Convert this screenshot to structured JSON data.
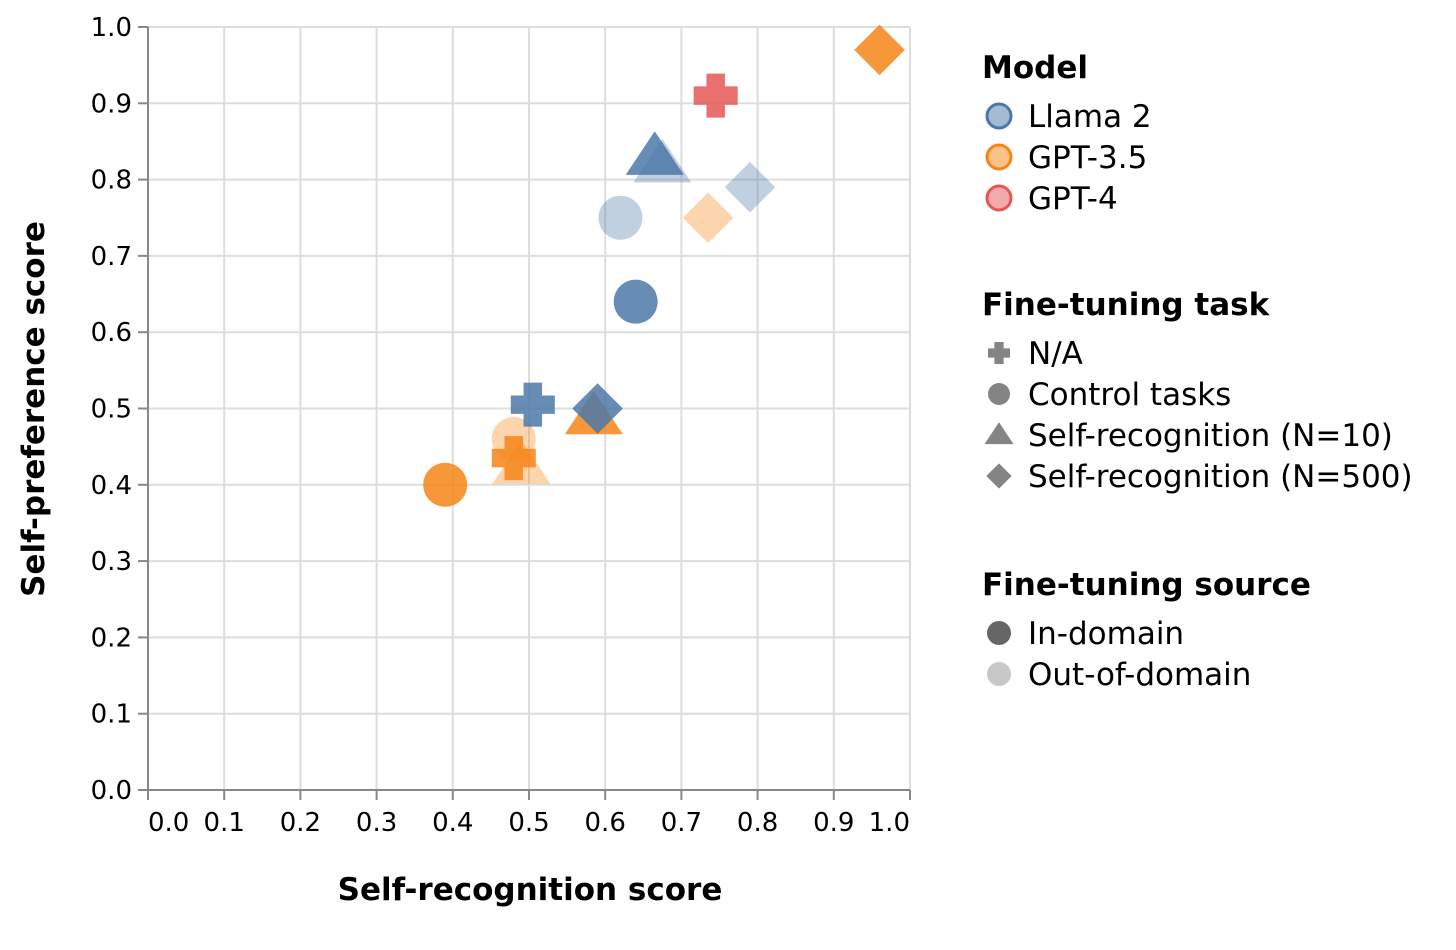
{
  "chart_data": {
    "type": "scatter",
    "xlabel": "Self-recognition score",
    "ylabel": "Self-preference score",
    "xlim": [
      0,
      1
    ],
    "ylim": [
      0,
      1
    ],
    "grid": true,
    "x_ticks": [
      "0.0",
      "0.1",
      "0.2",
      "0.3",
      "0.4",
      "0.5",
      "0.6",
      "0.7",
      "0.8",
      "0.9",
      "1.0"
    ],
    "y_ticks": [
      "0.0",
      "0.1",
      "0.2",
      "0.3",
      "0.4",
      "0.5",
      "0.6",
      "0.7",
      "0.8",
      "0.9",
      "1.0"
    ],
    "colors": {
      "Llama 2": "#4c78a8",
      "GPT-3.5": "#f58518",
      "GPT-4": "#e45756"
    },
    "legend": {
      "placement": "right",
      "model": {
        "title": "Model",
        "items": [
          "Llama 2",
          "GPT-3.5",
          "GPT-4"
        ]
      },
      "task": {
        "title": "Fine-tuning task",
        "items": [
          {
            "label": "N/A",
            "shape": "cross"
          },
          {
            "label": "Control tasks",
            "shape": "circle"
          },
          {
            "label": "Self-recognition (N=10)",
            "shape": "triangle"
          },
          {
            "label": "Self-recognition (N=500)",
            "shape": "diamond"
          }
        ]
      },
      "source": {
        "title": "Fine-tuning source",
        "items": [
          {
            "label": "In-domain",
            "style": "dark"
          },
          {
            "label": "Out-of-domain",
            "style": "light"
          }
        ]
      }
    },
    "points": [
      {
        "model": "GPT-3.5",
        "task": "N/A",
        "source": "In-domain",
        "x": 0.48,
        "y": 0.435
      },
      {
        "model": "GPT-3.5",
        "task": "Control tasks",
        "source": "In-domain",
        "x": 0.39,
        "y": 0.4
      },
      {
        "model": "GPT-3.5",
        "task": "Control tasks",
        "source": "Out-of-domain",
        "x": 0.48,
        "y": 0.46
      },
      {
        "model": "GPT-3.5",
        "task": "Self-recognition (N=10)",
        "source": "In-domain",
        "x": 0.585,
        "y": 0.49
      },
      {
        "model": "GPT-3.5",
        "task": "Self-recognition (N=10)",
        "source": "Out-of-domain",
        "x": 0.49,
        "y": 0.425
      },
      {
        "model": "GPT-3.5",
        "task": "Self-recognition (N=500)",
        "source": "In-domain",
        "x": 0.96,
        "y": 0.97
      },
      {
        "model": "GPT-3.5",
        "task": "Self-recognition (N=500)",
        "source": "Out-of-domain",
        "x": 0.735,
        "y": 0.75
      },
      {
        "model": "GPT-4",
        "task": "N/A",
        "source": "In-domain",
        "x": 0.745,
        "y": 0.91
      },
      {
        "model": "Llama 2",
        "task": "N/A",
        "source": "In-domain",
        "x": 0.505,
        "y": 0.505
      },
      {
        "model": "Llama 2",
        "task": "Control tasks",
        "source": "In-domain",
        "x": 0.64,
        "y": 0.64
      },
      {
        "model": "Llama 2",
        "task": "Control tasks",
        "source": "Out-of-domain",
        "x": 0.62,
        "y": 0.75
      },
      {
        "model": "Llama 2",
        "task": "Self-recognition (N=10)",
        "source": "In-domain",
        "x": 0.665,
        "y": 0.83
      },
      {
        "model": "Llama 2",
        "task": "Self-recognition (N=10)",
        "source": "Out-of-domain",
        "x": 0.675,
        "y": 0.82
      },
      {
        "model": "Llama 2",
        "task": "Self-recognition (N=500)",
        "source": "In-domain",
        "x": 0.59,
        "y": 0.5
      },
      {
        "model": "Llama 2",
        "task": "Self-recognition (N=500)",
        "source": "Out-of-domain",
        "x": 0.79,
        "y": 0.79
      }
    ]
  }
}
